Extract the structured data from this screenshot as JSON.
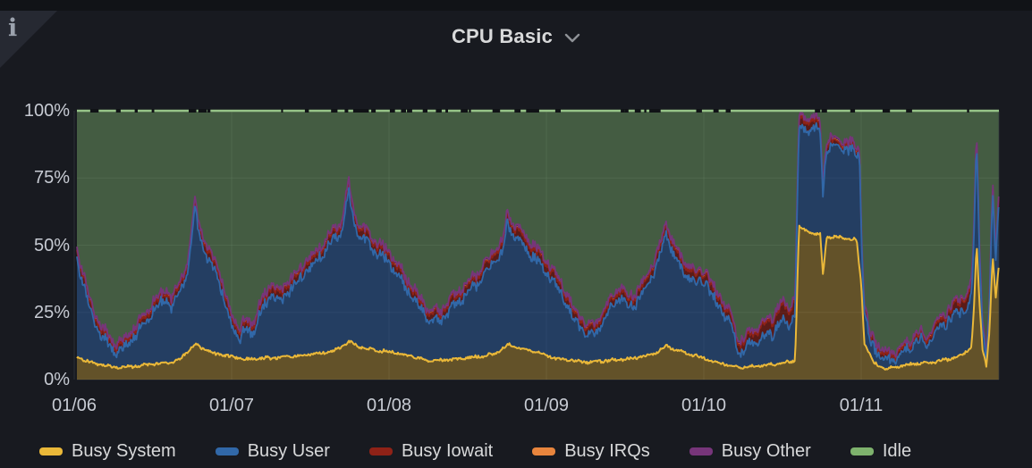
{
  "header": {
    "title": "CPU Basic"
  },
  "info_corner": {
    "glyph": "i"
  },
  "colors": {
    "page_bg": "#111317",
    "panel_bg": "#181A20",
    "corner_bg": "#262932",
    "title_text": "#D8D9DA",
    "axis_text": "#C7CBD3",
    "legend_text": "#D8D9DA",
    "grid": "rgba(204,212,222,0.10)",
    "chevron": "#8E9196",
    "top_line": "#97C488",
    "gap_dash": "#101216"
  },
  "chart_data": {
    "type": "area",
    "stacked": true,
    "unit": "percent",
    "title": "CPU Basic",
    "ylim": [
      0,
      100
    ],
    "y_ticks": [
      {
        "value": 0,
        "label": "0%"
      },
      {
        "value": 25,
        "label": "25%"
      },
      {
        "value": 50,
        "label": "50%"
      },
      {
        "value": 75,
        "label": "75%"
      },
      {
        "value": 100,
        "label": "100%"
      }
    ],
    "x_ticks": [
      "01/06",
      "01/07",
      "01/08",
      "01/09",
      "01/10",
      "01/11"
    ],
    "grid": true,
    "legend_position": "bottom",
    "series": [
      {
        "name": "Busy System",
        "slug": "busy-system",
        "color": "#EAB839",
        "fill": "rgba(234,184,57,0.36)",
        "points": [
          [
            -0.02,
            9
          ],
          [
            0.08,
            7
          ],
          [
            0.17,
            5.5
          ],
          [
            0.27,
            4.5
          ],
          [
            0.4,
            5
          ],
          [
            0.55,
            6
          ],
          [
            0.66,
            7
          ],
          [
            0.767,
            13
          ],
          [
            0.82,
            11.5
          ],
          [
            0.9,
            9.5
          ],
          [
            1.01,
            8.5
          ],
          [
            1.09,
            7.5
          ],
          [
            1.22,
            8
          ],
          [
            1.37,
            8.5
          ],
          [
            1.52,
            9.5
          ],
          [
            1.65,
            10.5
          ],
          [
            1.744,
            14
          ],
          [
            1.8,
            12.5
          ],
          [
            1.9,
            11
          ],
          [
            2.0,
            10.5
          ],
          [
            2.12,
            9
          ],
          [
            2.26,
            7
          ],
          [
            2.42,
            7.5
          ],
          [
            2.56,
            8.5
          ],
          [
            2.67,
            9.5
          ],
          [
            2.756,
            13
          ],
          [
            2.82,
            12
          ],
          [
            2.93,
            10.5
          ],
          [
            3.05,
            8
          ],
          [
            3.25,
            6.5
          ],
          [
            3.4,
            7
          ],
          [
            3.55,
            8
          ],
          [
            3.68,
            9.5
          ],
          [
            3.761,
            12.5
          ],
          [
            3.85,
            10.5
          ],
          [
            3.95,
            9
          ],
          [
            4.05,
            7
          ],
          [
            4.22,
            4.5
          ],
          [
            4.36,
            5
          ],
          [
            4.48,
            6
          ],
          [
            4.55,
            6.5
          ],
          [
            4.58,
            7
          ],
          [
            4.605,
            57
          ],
          [
            4.66,
            55
          ],
          [
            4.74,
            54
          ],
          [
            4.757,
            39
          ],
          [
            4.78,
            53
          ],
          [
            4.88,
            53
          ],
          [
            4.97,
            52
          ],
          [
            5.0,
            36
          ],
          [
            5.02,
            14
          ],
          [
            5.08,
            6
          ],
          [
            5.16,
            4
          ],
          [
            5.25,
            5
          ],
          [
            5.35,
            6
          ],
          [
            5.45,
            6.5
          ],
          [
            5.55,
            7.5
          ],
          [
            5.65,
            9.5
          ],
          [
            5.7,
            12
          ],
          [
            5.715,
            25
          ],
          [
            5.733,
            51
          ],
          [
            5.75,
            30
          ],
          [
            5.77,
            12
          ],
          [
            5.795,
            5
          ],
          [
            5.815,
            18
          ],
          [
            5.835,
            46
          ],
          [
            5.855,
            30
          ],
          [
            5.875,
            43
          ]
        ]
      },
      {
        "name": "Busy User",
        "slug": "busy-user",
        "color": "#3168A8",
        "fill": "rgba(47,95,160,0.52)",
        "derived": "stack_top_points minus all other busy series"
      },
      {
        "name": "Busy Iowait",
        "slug": "busy-iowait",
        "color": "#8F2217",
        "fill": "rgba(140,30,18,0.58)",
        "points": [
          [
            -0.02,
            3
          ],
          [
            0.27,
            2
          ],
          [
            0.55,
            2.5
          ],
          [
            0.767,
            2.5
          ],
          [
            0.9,
            3
          ],
          [
            1.05,
            2.5
          ],
          [
            1.26,
            3
          ],
          [
            1.5,
            2.5
          ],
          [
            1.744,
            2.8
          ],
          [
            2.0,
            3
          ],
          [
            2.26,
            2.5
          ],
          [
            2.56,
            2.8
          ],
          [
            2.756,
            3
          ],
          [
            2.93,
            3.5
          ],
          [
            3.25,
            2.5
          ],
          [
            3.55,
            2.8
          ],
          [
            3.761,
            3
          ],
          [
            3.95,
            3.2
          ],
          [
            4.17,
            3
          ],
          [
            4.3,
            3.5
          ],
          [
            4.42,
            5
          ],
          [
            4.52,
            6
          ],
          [
            4.58,
            5
          ],
          [
            4.605,
            3.5
          ],
          [
            4.7,
            3
          ],
          [
            4.78,
            2
          ],
          [
            4.88,
            1.6
          ],
          [
            5.0,
            1.6
          ],
          [
            5.06,
            2
          ],
          [
            5.25,
            1.5
          ],
          [
            5.45,
            2
          ],
          [
            5.6,
            3.5
          ],
          [
            5.68,
            4.5
          ],
          [
            5.733,
            3
          ],
          [
            5.795,
            1.5
          ],
          [
            5.835,
            3
          ],
          [
            5.875,
            3
          ]
        ]
      },
      {
        "name": "Busy IRQs",
        "slug": "busy-irqs",
        "color": "#E8853D",
        "fill": "rgba(232,133,61,0.5)",
        "constant": 0.35
      },
      {
        "name": "Busy Other",
        "slug": "busy-other",
        "color": "#77357A",
        "fill": "rgba(110,48,112,0.6)",
        "constant": 0.9
      },
      {
        "name": "Idle",
        "slug": "idle",
        "color": "#7EB26D",
        "fill": "rgba(126,178,109,0.44)",
        "derived": "remainder to 100%"
      }
    ],
    "stack_top_points": [
      [
        -0.02,
        56
      ],
      [
        0.03,
        46
      ],
      [
        0.1,
        30
      ],
      [
        0.17,
        20
      ],
      [
        0.27,
        13
      ],
      [
        0.33,
        16
      ],
      [
        0.4,
        21
      ],
      [
        0.47,
        26
      ],
      [
        0.53,
        31
      ],
      [
        0.58,
        34
      ],
      [
        0.62,
        30
      ],
      [
        0.66,
        36
      ],
      [
        0.72,
        44
      ],
      [
        0.767,
        67
      ],
      [
        0.79,
        60
      ],
      [
        0.82,
        52
      ],
      [
        0.86,
        47
      ],
      [
        0.9,
        46
      ],
      [
        0.94,
        36
      ],
      [
        0.98,
        28
      ],
      [
        1.01,
        24
      ],
      [
        1.05,
        19
      ],
      [
        1.09,
        22
      ],
      [
        1.13,
        21
      ],
      [
        1.17,
        27
      ],
      [
        1.22,
        33
      ],
      [
        1.26,
        37
      ],
      [
        1.3,
        32
      ],
      [
        1.35,
        36
      ],
      [
        1.41,
        40
      ],
      [
        1.47,
        44
      ],
      [
        1.53,
        47
      ],
      [
        1.59,
        52
      ],
      [
        1.65,
        56
      ],
      [
        1.7,
        59
      ],
      [
        1.744,
        74
      ],
      [
        1.77,
        65
      ],
      [
        1.8,
        58
      ],
      [
        1.85,
        56
      ],
      [
        1.9,
        52
      ],
      [
        1.95,
        50
      ],
      [
        2.0,
        48
      ],
      [
        2.06,
        42
      ],
      [
        2.12,
        37
      ],
      [
        2.19,
        31
      ],
      [
        2.26,
        26
      ],
      [
        2.31,
        25
      ],
      [
        2.38,
        30
      ],
      [
        2.44,
        33
      ],
      [
        2.5,
        36
      ],
      [
        2.56,
        40
      ],
      [
        2.62,
        44
      ],
      [
        2.67,
        48
      ],
      [
        2.72,
        52
      ],
      [
        2.756,
        63
      ],
      [
        2.79,
        58
      ],
      [
        2.82,
        57
      ],
      [
        2.87,
        53
      ],
      [
        2.93,
        50
      ],
      [
        3.0,
        45
      ],
      [
        3.05,
        40
      ],
      [
        3.11,
        35
      ],
      [
        3.18,
        26
      ],
      [
        3.25,
        21
      ],
      [
        3.3,
        20
      ],
      [
        3.36,
        26
      ],
      [
        3.42,
        31
      ],
      [
        3.47,
        35
      ],
      [
        3.52,
        31
      ],
      [
        3.57,
        33
      ],
      [
        3.63,
        38
      ],
      [
        3.68,
        44
      ],
      [
        3.72,
        49
      ],
      [
        3.761,
        59
      ],
      [
        3.8,
        52
      ],
      [
        3.85,
        46
      ],
      [
        3.9,
        43
      ],
      [
        3.95,
        40
      ],
      [
        4.0,
        42
      ],
      [
        4.05,
        35
      ],
      [
        4.1,
        31
      ],
      [
        4.17,
        25
      ],
      [
        4.22,
        14
      ],
      [
        4.3,
        18
      ],
      [
        4.38,
        21
      ],
      [
        4.45,
        25
      ],
      [
        4.5,
        29
      ],
      [
        4.54,
        27
      ],
      [
        4.58,
        32
      ],
      [
        4.605,
        98
      ],
      [
        4.64,
        97.5
      ],
      [
        4.7,
        98.5
      ],
      [
        4.74,
        96
      ],
      [
        4.757,
        73
      ],
      [
        4.78,
        90
      ],
      [
        4.84,
        89.5
      ],
      [
        4.9,
        88.5
      ],
      [
        4.96,
        87.5
      ],
      [
        4.99,
        86
      ],
      [
        5.0,
        60
      ],
      [
        5.02,
        28
      ],
      [
        5.06,
        17
      ],
      [
        5.12,
        12
      ],
      [
        5.19,
        10
      ],
      [
        5.25,
        12
      ],
      [
        5.31,
        15
      ],
      [
        5.37,
        18
      ],
      [
        5.42,
        16
      ],
      [
        5.48,
        21
      ],
      [
        5.55,
        26
      ],
      [
        5.62,
        30
      ],
      [
        5.67,
        32
      ],
      [
        5.7,
        36
      ],
      [
        5.715,
        55
      ],
      [
        5.733,
        93
      ],
      [
        5.75,
        55
      ],
      [
        5.77,
        25
      ],
      [
        5.795,
        9
      ],
      [
        5.815,
        30
      ],
      [
        5.835,
        74
      ],
      [
        5.855,
        48
      ],
      [
        5.875,
        73
      ]
    ]
  }
}
